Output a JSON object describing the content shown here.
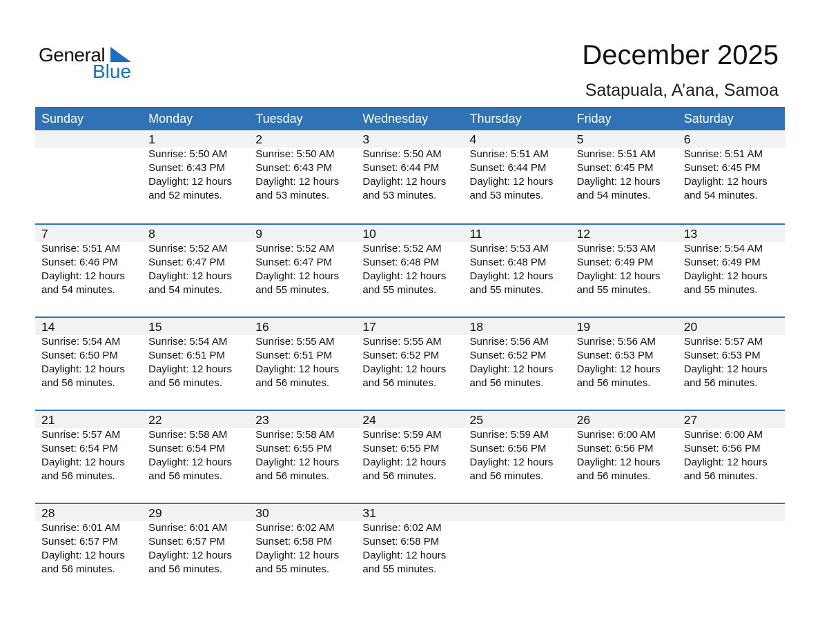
{
  "logo": {
    "word1": "General",
    "word2": "Blue",
    "accent": "#1a6fc0"
  },
  "title": "December 2025",
  "subtitle": "Satapuala, A’ana, Samoa",
  "colors": {
    "header": "#2f72b5",
    "band": "#f2f2f2"
  },
  "weekdays": [
    "Sunday",
    "Monday",
    "Tuesday",
    "Wednesday",
    "Thursday",
    "Friday",
    "Saturday"
  ],
  "days": [
    {
      "day": "1",
      "sunrise": "Sunrise: 5:50 AM",
      "sunset": "Sunset: 6:43 PM",
      "daylight": "Daylight: 12 hours",
      "minutes": "and 52 minutes."
    },
    {
      "day": "2",
      "sunrise": "Sunrise: 5:50 AM",
      "sunset": "Sunset: 6:43 PM",
      "daylight": "Daylight: 12 hours",
      "minutes": "and 53 minutes."
    },
    {
      "day": "3",
      "sunrise": "Sunrise: 5:50 AM",
      "sunset": "Sunset: 6:44 PM",
      "daylight": "Daylight: 12 hours",
      "minutes": "and 53 minutes."
    },
    {
      "day": "4",
      "sunrise": "Sunrise: 5:51 AM",
      "sunset": "Sunset: 6:44 PM",
      "daylight": "Daylight: 12 hours",
      "minutes": "and 53 minutes."
    },
    {
      "day": "5",
      "sunrise": "Sunrise: 5:51 AM",
      "sunset": "Sunset: 6:45 PM",
      "daylight": "Daylight: 12 hours",
      "minutes": "and 54 minutes."
    },
    {
      "day": "6",
      "sunrise": "Sunrise: 5:51 AM",
      "sunset": "Sunset: 6:45 PM",
      "daylight": "Daylight: 12 hours",
      "minutes": "and 54 minutes."
    },
    {
      "day": "7",
      "sunrise": "Sunrise: 5:51 AM",
      "sunset": "Sunset: 6:46 PM",
      "daylight": "Daylight: 12 hours",
      "minutes": "and 54 minutes."
    },
    {
      "day": "8",
      "sunrise": "Sunrise: 5:52 AM",
      "sunset": "Sunset: 6:47 PM",
      "daylight": "Daylight: 12 hours",
      "minutes": "and 54 minutes."
    },
    {
      "day": "9",
      "sunrise": "Sunrise: 5:52 AM",
      "sunset": "Sunset: 6:47 PM",
      "daylight": "Daylight: 12 hours",
      "minutes": "and 55 minutes."
    },
    {
      "day": "10",
      "sunrise": "Sunrise: 5:52 AM",
      "sunset": "Sunset: 6:48 PM",
      "daylight": "Daylight: 12 hours",
      "minutes": "and 55 minutes."
    },
    {
      "day": "11",
      "sunrise": "Sunrise: 5:53 AM",
      "sunset": "Sunset: 6:48 PM",
      "daylight": "Daylight: 12 hours",
      "minutes": "and 55 minutes."
    },
    {
      "day": "12",
      "sunrise": "Sunrise: 5:53 AM",
      "sunset": "Sunset: 6:49 PM",
      "daylight": "Daylight: 12 hours",
      "minutes": "and 55 minutes."
    },
    {
      "day": "13",
      "sunrise": "Sunrise: 5:54 AM",
      "sunset": "Sunset: 6:49 PM",
      "daylight": "Daylight: 12 hours",
      "minutes": "and 55 minutes."
    },
    {
      "day": "14",
      "sunrise": "Sunrise: 5:54 AM",
      "sunset": "Sunset: 6:50 PM",
      "daylight": "Daylight: 12 hours",
      "minutes": "and 56 minutes."
    },
    {
      "day": "15",
      "sunrise": "Sunrise: 5:54 AM",
      "sunset": "Sunset: 6:51 PM",
      "daylight": "Daylight: 12 hours",
      "minutes": "and 56 minutes."
    },
    {
      "day": "16",
      "sunrise": "Sunrise: 5:55 AM",
      "sunset": "Sunset: 6:51 PM",
      "daylight": "Daylight: 12 hours",
      "minutes": "and 56 minutes."
    },
    {
      "day": "17",
      "sunrise": "Sunrise: 5:55 AM",
      "sunset": "Sunset: 6:52 PM",
      "daylight": "Daylight: 12 hours",
      "minutes": "and 56 minutes."
    },
    {
      "day": "18",
      "sunrise": "Sunrise: 5:56 AM",
      "sunset": "Sunset: 6:52 PM",
      "daylight": "Daylight: 12 hours",
      "minutes": "and 56 minutes."
    },
    {
      "day": "19",
      "sunrise": "Sunrise: 5:56 AM",
      "sunset": "Sunset: 6:53 PM",
      "daylight": "Daylight: 12 hours",
      "minutes": "and 56 minutes."
    },
    {
      "day": "20",
      "sunrise": "Sunrise: 5:57 AM",
      "sunset": "Sunset: 6:53 PM",
      "daylight": "Daylight: 12 hours",
      "minutes": "and 56 minutes."
    },
    {
      "day": "21",
      "sunrise": "Sunrise: 5:57 AM",
      "sunset": "Sunset: 6:54 PM",
      "daylight": "Daylight: 12 hours",
      "minutes": "and 56 minutes."
    },
    {
      "day": "22",
      "sunrise": "Sunrise: 5:58 AM",
      "sunset": "Sunset: 6:54 PM",
      "daylight": "Daylight: 12 hours",
      "minutes": "and 56 minutes."
    },
    {
      "day": "23",
      "sunrise": "Sunrise: 5:58 AM",
      "sunset": "Sunset: 6:55 PM",
      "daylight": "Daylight: 12 hours",
      "minutes": "and 56 minutes."
    },
    {
      "day": "24",
      "sunrise": "Sunrise: 5:59 AM",
      "sunset": "Sunset: 6:55 PM",
      "daylight": "Daylight: 12 hours",
      "minutes": "and 56 minutes."
    },
    {
      "day": "25",
      "sunrise": "Sunrise: 5:59 AM",
      "sunset": "Sunset: 6:56 PM",
      "daylight": "Daylight: 12 hours",
      "minutes": "and 56 minutes."
    },
    {
      "day": "26",
      "sunrise": "Sunrise: 6:00 AM",
      "sunset": "Sunset: 6:56 PM",
      "daylight": "Daylight: 12 hours",
      "minutes": "and 56 minutes."
    },
    {
      "day": "27",
      "sunrise": "Sunrise: 6:00 AM",
      "sunset": "Sunset: 6:56 PM",
      "daylight": "Daylight: 12 hours",
      "minutes": "and 56 minutes."
    },
    {
      "day": "28",
      "sunrise": "Sunrise: 6:01 AM",
      "sunset": "Sunset: 6:57 PM",
      "daylight": "Daylight: 12 hours",
      "minutes": "and 56 minutes."
    },
    {
      "day": "29",
      "sunrise": "Sunrise: 6:01 AM",
      "sunset": "Sunset: 6:57 PM",
      "daylight": "Daylight: 12 hours",
      "minutes": "and 56 minutes."
    },
    {
      "day": "30",
      "sunrise": "Sunrise: 6:02 AM",
      "sunset": "Sunset: 6:58 PM",
      "daylight": "Daylight: 12 hours",
      "minutes": "and 55 minutes."
    },
    {
      "day": "31",
      "sunrise": "Sunrise: 6:02 AM",
      "sunset": "Sunset: 6:58 PM",
      "daylight": "Daylight: 12 hours",
      "minutes": "and 55 minutes."
    }
  ]
}
